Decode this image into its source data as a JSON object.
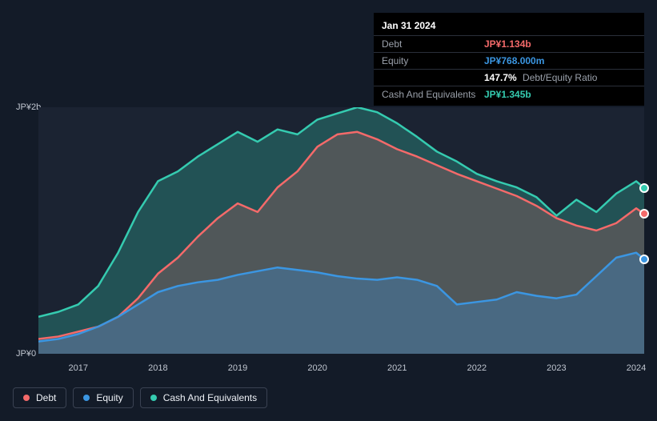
{
  "tooltip": {
    "date": "Jan 31 2024",
    "rows": {
      "debt": {
        "label": "Debt",
        "value": "JP¥1.134b",
        "color": "#f46a6a"
      },
      "equity": {
        "label": "Equity",
        "value": "JP¥768.000m",
        "color": "#3b96e2"
      },
      "ratio": {
        "pct": "147.7%",
        "label": "Debt/Equity Ratio"
      },
      "cash": {
        "label": "Cash And Equivalents",
        "value": "JP¥1.345b",
        "color": "#35cbb0"
      }
    }
  },
  "chart": {
    "type": "area",
    "background_color": "#131b28",
    "plot_background": "#1b2332",
    "grid_color": "#2a3140",
    "text_color": "#c0c6d0",
    "label_fontsize": 11,
    "yaxis": {
      "ticks": [
        {
          "label": "JP¥2b",
          "value": 2.0
        },
        {
          "label": "JP¥0",
          "value": 0.0
        }
      ],
      "ylim": [
        0,
        2.0
      ]
    },
    "xaxis": {
      "range": [
        2016.5,
        2024.1
      ],
      "ticks": [
        {
          "label": "2017",
          "value": 2017
        },
        {
          "label": "2018",
          "value": 2018
        },
        {
          "label": "2019",
          "value": 2019
        },
        {
          "label": "2020",
          "value": 2020
        },
        {
          "label": "2021",
          "value": 2021
        },
        {
          "label": "2022",
          "value": 2022
        },
        {
          "label": "2023",
          "value": 2023
        },
        {
          "label": "2024",
          "value": 2024
        }
      ]
    },
    "series": [
      {
        "name": "Cash And Equivalents",
        "key": "cash",
        "stroke": "#35cbb0",
        "fill": "#35cbb0",
        "fill_opacity": 0.28,
        "line_width": 2.5,
        "data": [
          [
            2016.5,
            0.3
          ],
          [
            2016.75,
            0.34
          ],
          [
            2017.0,
            0.4
          ],
          [
            2017.25,
            0.55
          ],
          [
            2017.5,
            0.82
          ],
          [
            2017.75,
            1.15
          ],
          [
            2018.0,
            1.4
          ],
          [
            2018.25,
            1.48
          ],
          [
            2018.5,
            1.6
          ],
          [
            2018.75,
            1.7
          ],
          [
            2019.0,
            1.8
          ],
          [
            2019.25,
            1.72
          ],
          [
            2019.5,
            1.82
          ],
          [
            2019.75,
            1.78
          ],
          [
            2020.0,
            1.9
          ],
          [
            2020.25,
            1.95
          ],
          [
            2020.5,
            2.0
          ],
          [
            2020.75,
            1.96
          ],
          [
            2021.0,
            1.87
          ],
          [
            2021.25,
            1.76
          ],
          [
            2021.5,
            1.64
          ],
          [
            2021.75,
            1.56
          ],
          [
            2022.0,
            1.46
          ],
          [
            2022.25,
            1.4
          ],
          [
            2022.5,
            1.35
          ],
          [
            2022.75,
            1.27
          ],
          [
            2023.0,
            1.12
          ],
          [
            2023.25,
            1.25
          ],
          [
            2023.5,
            1.15
          ],
          [
            2023.75,
            1.3
          ],
          [
            2024.0,
            1.4
          ],
          [
            2024.1,
            1.345
          ]
        ]
      },
      {
        "name": "Debt",
        "key": "debt",
        "stroke": "#f46a6a",
        "fill": "#f46a6a",
        "fill_opacity": 0.22,
        "line_width": 2.5,
        "data": [
          [
            2016.5,
            0.12
          ],
          [
            2016.75,
            0.14
          ],
          [
            2017.0,
            0.18
          ],
          [
            2017.25,
            0.22
          ],
          [
            2017.5,
            0.3
          ],
          [
            2017.75,
            0.45
          ],
          [
            2018.0,
            0.65
          ],
          [
            2018.25,
            0.78
          ],
          [
            2018.5,
            0.95
          ],
          [
            2018.75,
            1.1
          ],
          [
            2019.0,
            1.22
          ],
          [
            2019.25,
            1.15
          ],
          [
            2019.5,
            1.35
          ],
          [
            2019.75,
            1.48
          ],
          [
            2020.0,
            1.68
          ],
          [
            2020.25,
            1.78
          ],
          [
            2020.5,
            1.8
          ],
          [
            2020.75,
            1.74
          ],
          [
            2021.0,
            1.66
          ],
          [
            2021.25,
            1.6
          ],
          [
            2021.5,
            1.53
          ],
          [
            2021.75,
            1.46
          ],
          [
            2022.0,
            1.4
          ],
          [
            2022.25,
            1.34
          ],
          [
            2022.5,
            1.28
          ],
          [
            2022.75,
            1.2
          ],
          [
            2023.0,
            1.1
          ],
          [
            2023.25,
            1.04
          ],
          [
            2023.5,
            1.0
          ],
          [
            2023.75,
            1.06
          ],
          [
            2024.0,
            1.18
          ],
          [
            2024.1,
            1.134
          ]
        ]
      },
      {
        "name": "Equity",
        "key": "equity",
        "stroke": "#3b96e2",
        "fill": "#3b96e2",
        "fill_opacity": 0.3,
        "line_width": 2.5,
        "data": [
          [
            2016.5,
            0.1
          ],
          [
            2016.75,
            0.12
          ],
          [
            2017.0,
            0.16
          ],
          [
            2017.25,
            0.22
          ],
          [
            2017.5,
            0.3
          ],
          [
            2017.75,
            0.4
          ],
          [
            2018.0,
            0.5
          ],
          [
            2018.25,
            0.55
          ],
          [
            2018.5,
            0.58
          ],
          [
            2018.75,
            0.6
          ],
          [
            2019.0,
            0.64
          ],
          [
            2019.25,
            0.67
          ],
          [
            2019.5,
            0.7
          ],
          [
            2019.75,
            0.68
          ],
          [
            2020.0,
            0.66
          ],
          [
            2020.25,
            0.63
          ],
          [
            2020.5,
            0.61
          ],
          [
            2020.75,
            0.6
          ],
          [
            2021.0,
            0.62
          ],
          [
            2021.25,
            0.6
          ],
          [
            2021.5,
            0.55
          ],
          [
            2021.75,
            0.4
          ],
          [
            2022.0,
            0.42
          ],
          [
            2022.25,
            0.44
          ],
          [
            2022.5,
            0.5
          ],
          [
            2022.75,
            0.47
          ],
          [
            2023.0,
            0.45
          ],
          [
            2023.25,
            0.48
          ],
          [
            2023.5,
            0.63
          ],
          [
            2023.75,
            0.78
          ],
          [
            2024.0,
            0.82
          ],
          [
            2024.1,
            0.768
          ]
        ]
      }
    ],
    "markers_at_x": 2024.1
  },
  "legend": {
    "border_color": "#3a4252",
    "items": [
      {
        "label": "Debt",
        "color": "#f46a6a"
      },
      {
        "label": "Equity",
        "color": "#3b96e2"
      },
      {
        "label": "Cash And Equivalents",
        "color": "#35cbb0"
      }
    ]
  }
}
